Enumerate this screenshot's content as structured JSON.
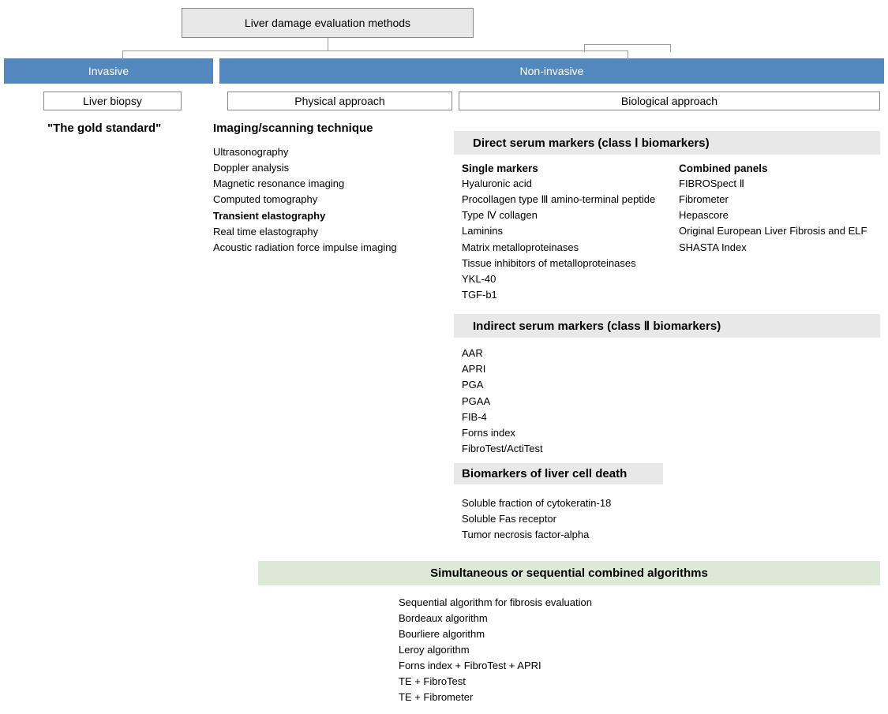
{
  "colors": {
    "blue_bar": "#5288bd",
    "gray_box": "#e8e8e8",
    "green_box": "#dce9d7",
    "border": "#888888"
  },
  "root": {
    "title": "Liver damage evaluation methods"
  },
  "branches": {
    "invasive": "Invasive",
    "noninvasive": "Non-invasive"
  },
  "sub": {
    "biopsy": "Liver biopsy",
    "physical": "Physical approach",
    "biological": "Biological approach"
  },
  "invasive_detail": {
    "gold": "\"The gold standard\""
  },
  "physical": {
    "heading": "Imaging/scanning technique",
    "items": [
      "Ultrasonography",
      "Doppler analysis",
      "Magnetic resonance imaging",
      "Computed tomography",
      "Transient elastography",
      "Real time elastography",
      "Acoustic radiation force impulse imaging"
    ],
    "bold_index": 4
  },
  "direct": {
    "heading": "Direct serum markers (class Ⅰ biomarkers)",
    "single_head": "Single markers",
    "single": [
      "Hyaluronic acid",
      "Procollagen type Ⅲ amino-terminal peptide",
      "Type Ⅳ collagen",
      "Laminins",
      "Matrix metalloproteinases",
      "Tissue inhibitors of metalloproteinases",
      "YKL-40",
      "TGF-b1"
    ],
    "combined_head": "Combined panels",
    "combined": [
      "FIBROSpect Ⅱ",
      "Fibrometer",
      "Hepascore",
      "Original European Liver Fibrosis and ELF",
      "SHASTA Index"
    ]
  },
  "indirect": {
    "heading": "Indirect serum markers (class Ⅱ biomarkers)",
    "items": [
      "AAR",
      "APRI",
      "PGA",
      "PGAA",
      "FIB-4",
      "Forns index",
      "FibroTest/ActiTest"
    ]
  },
  "celldeath": {
    "heading": "Biomarkers of liver cell death",
    "items": [
      "Soluble fraction of cytokeratin-18",
      "Soluble Fas receptor",
      "Tumor necrosis factor-alpha"
    ]
  },
  "algo": {
    "heading": "Simultaneous or sequential combined algorithms",
    "items": [
      "Sequential algorithm for fibrosis evaluation",
      "Bordeaux algorithm",
      "Bourliere algorithm",
      "Leroy algorithm",
      "Forns index + FibroTest + APRI",
      "TE + FibroTest",
      "TE + Fibrometer"
    ]
  }
}
